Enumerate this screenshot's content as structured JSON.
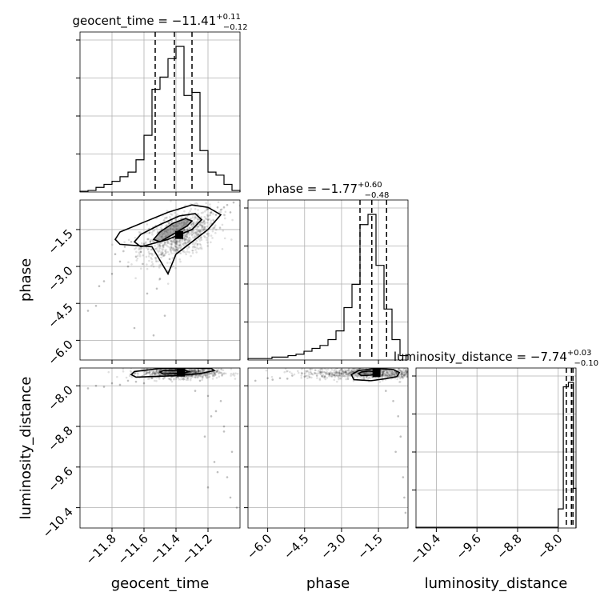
{
  "chart_data": {
    "type": "corner",
    "parameters": [
      "geocent_time",
      "phase",
      "luminosity_distance"
    ],
    "axis_labels": {
      "geocent_time": "geocent_time",
      "phase": "phase",
      "luminosity_distance": "luminosity_distance"
    },
    "ranges": {
      "geocent_time": [
        -12.0,
        -11.0
      ],
      "phase": [
        -6.8,
        -0.3
      ],
      "luminosity_distance": [
        -10.8,
        -7.65
      ]
    },
    "ticks": {
      "geocent_time": [
        -11.8,
        -11.6,
        -11.4,
        -11.2
      ],
      "phase": [
        -6.0,
        -4.5,
        -3.0,
        -1.5
      ],
      "luminosity_distance": [
        -10.4,
        -9.6,
        -8.8,
        -8.0
      ]
    },
    "tick_labels": {
      "geocent_time": [
        "−11.8",
        "−11.6",
        "−11.4",
        "−11.2"
      ],
      "phase": [
        "−6.0",
        "−4.5",
        "−3.0",
        "−1.5"
      ],
      "luminosity_distance": [
        "−10.4",
        "−9.6",
        "−8.8",
        "−8.0"
      ]
    },
    "titles": {
      "geocent_time": {
        "name": "geocent_time",
        "median": "−11.41",
        "plus": "+0.11",
        "minus": "−0.12"
      },
      "phase": {
        "name": "phase",
        "median": "−1.77",
        "plus": "+0.60",
        "minus": "−0.48"
      },
      "luminosity_distance": {
        "name": "luminosity_distance",
        "median": "−7.74",
        "plus": "+0.03",
        "minus": "−0.10"
      }
    },
    "quantiles": {
      "geocent_time": [
        -11.53,
        -11.41,
        -11.3
      ],
      "phase": [
        -2.25,
        -1.77,
        -1.17
      ],
      "luminosity_distance": [
        -7.84,
        -7.74,
        -7.71
      ]
    },
    "histograms": {
      "geocent_time": {
        "edges": [
          -12.0,
          -11.95,
          -11.9,
          -11.85,
          -11.8,
          -11.75,
          -11.7,
          -11.65,
          -11.6,
          -11.55,
          -11.5,
          -11.45,
          -11.4,
          -11.35,
          -11.3,
          -11.25,
          -11.2,
          -11.15,
          -11.1,
          -11.05,
          -11.0
        ],
        "counts": [
          0.005,
          0.01,
          0.03,
          0.05,
          0.07,
          0.1,
          0.13,
          0.21,
          0.37,
          0.67,
          0.75,
          0.87,
          0.95,
          0.63,
          0.65,
          0.27,
          0.13,
          0.11,
          0.05,
          0.01
        ]
      },
      "phase": {
        "edges": [
          -6.8,
          -6.475,
          -6.15,
          -5.825,
          -5.5,
          -5.175,
          -4.85,
          -4.525,
          -4.2,
          -3.875,
          -3.55,
          -3.225,
          -2.9,
          -2.575,
          -2.25,
          -1.925,
          -1.6,
          -1.275,
          -0.95,
          -0.625,
          -0.3
        ],
        "counts": [
          0.01,
          0.01,
          0.01,
          0.02,
          0.02,
          0.03,
          0.04,
          0.06,
          0.08,
          0.1,
          0.14,
          0.2,
          0.36,
          0.52,
          0.93,
          1.0,
          0.65,
          0.35,
          0.14,
          0.03
        ]
      },
      "luminosity_distance": {
        "edges": [
          -10.8,
          -10.7,
          -10.6,
          -10.5,
          -10.4,
          -10.3,
          -10.2,
          -10.1,
          -10.0,
          -9.9,
          -9.8,
          -9.7,
          -9.6,
          -9.5,
          -9.4,
          -9.3,
          -9.2,
          -9.1,
          -9.0,
          -8.9,
          -8.8,
          -8.7,
          -8.6,
          -8.5,
          -8.4,
          -8.3,
          -8.2,
          -8.1,
          -8.0,
          -7.9,
          -7.8,
          -7.7,
          -7.65
        ],
        "counts": [
          0.005,
          0.005,
          0.005,
          0.005,
          0.005,
          0.005,
          0.005,
          0.005,
          0.005,
          0.005,
          0.005,
          0.005,
          0.005,
          0.005,
          0.005,
          0.005,
          0.005,
          0.005,
          0.005,
          0.005,
          0.005,
          0.005,
          0.005,
          0.005,
          0.005,
          0.005,
          0.005,
          0.005,
          0.13,
          0.96,
          0.99,
          0.27
        ]
      }
    },
    "scatter_samples": {
      "phase_vs_geocent_time": {
        "x": [
          -11.48,
          -11.42,
          -11.38,
          -11.35,
          -11.55,
          -11.6,
          -11.68,
          -11.72,
          -11.3,
          -11.25,
          -11.2,
          -11.15,
          -11.1,
          -11.45,
          -11.5,
          -11.65,
          -11.75,
          -11.8,
          -11.9,
          -11.58,
          -11.52,
          -11.47,
          -11.36,
          -11.33,
          -11.28,
          -11.22,
          -11.18,
          -11.12,
          -11.08,
          -11.62,
          -11.7,
          -11.85,
          -11.95,
          -11.44,
          -11.4,
          -11.54,
          -11.66,
          -11.26,
          -11.16,
          -11.06,
          -11.56,
          -11.49,
          -11.43,
          -11.38,
          -11.78,
          -11.88,
          -11.32,
          -11.24,
          -11.14,
          -11.04
        ],
        "y": [
          -1.9,
          -1.7,
          -1.6,
          -1.5,
          -2.3,
          -2.1,
          -2.0,
          -2.2,
          -1.5,
          -1.3,
          -1.1,
          -0.9,
          -0.6,
          -3.2,
          -3.5,
          -2.6,
          -2.8,
          -3.3,
          -4.6,
          -4.1,
          -3.9,
          -5.0,
          -1.9,
          -1.2,
          -1.0,
          -1.4,
          -0.8,
          -0.7,
          -0.5,
          -2.4,
          -3.0,
          -3.6,
          -4.8,
          -2.7,
          -2.2,
          -5.8,
          -5.5,
          -1.7,
          -1.2,
          -0.8,
          -2.0,
          -1.8,
          -2.1,
          -1.6,
          -2.5,
          -3.8,
          -0.9,
          -1.1,
          -0.6,
          -0.4
        ]
      },
      "luminosity_distance_vs_geocent_time": {
        "x": [
          -11.6,
          -11.5,
          -11.4,
          -11.3,
          -11.25,
          -11.7,
          -11.8,
          -11.9,
          -11.2,
          -11.15,
          -11.1,
          -11.05,
          -11.22,
          -11.18,
          -11.12,
          -11.45,
          -11.35,
          -11.55,
          -11.65,
          -11.75,
          -11.85,
          -11.95,
          -11.28,
          -11.08,
          -11.02,
          -11.16,
          -11.2,
          -11.1,
          -11.14,
          -11.06
        ],
        "y": [
          -7.95,
          -7.8,
          -7.75,
          -7.8,
          -7.9,
          -7.9,
          -7.95,
          -8.0,
          -8.2,
          -8.5,
          -8.8,
          -9.3,
          -9.0,
          -8.6,
          -8.3,
          -7.78,
          -7.72,
          -7.85,
          -7.92,
          -7.98,
          -8.02,
          -8.05,
          -8.1,
          -9.8,
          -10.4,
          -9.5,
          -10.0,
          -8.9,
          -9.7,
          -10.2
        ]
      },
      "luminosity_distance_vs_phase": {
        "x": [
          -6.5,
          -6.0,
          -5.5,
          -5.0,
          -4.5,
          -4.0,
          -3.5,
          -3.0,
          -2.5,
          -2.0,
          -1.5,
          -1.0,
          -0.6,
          -0.4,
          -1.8,
          -2.2,
          -2.8,
          -3.3,
          -3.8,
          -4.3,
          -5.2,
          -5.8,
          -0.7,
          -0.5,
          -0.45,
          -0.9,
          -1.2,
          -0.8
        ],
        "y": [
          -7.9,
          -7.85,
          -7.85,
          -7.8,
          -7.82,
          -7.8,
          -7.78,
          -7.76,
          -7.75,
          -7.74,
          -7.76,
          -7.8,
          -9.0,
          -10.5,
          -7.8,
          -7.78,
          -7.77,
          -7.79,
          -7.81,
          -7.83,
          -7.86,
          -7.88,
          -8.6,
          -9.8,
          -10.2,
          -8.3,
          -8.1,
          -9.3
        ]
      }
    },
    "contours": {
      "phase_vs_geocent_time": [
        {
          "level": "inner",
          "x": [
            -11.5,
            -11.42,
            -11.33,
            -11.3,
            -11.34,
            -11.42,
            -11.5,
            -11.54,
            -11.5
          ],
          "y": [
            -2.0,
            -1.7,
            -1.35,
            -1.15,
            -1.05,
            -1.25,
            -1.6,
            -1.9,
            -2.0
          ]
        },
        {
          "level": "middle",
          "x": [
            -11.62,
            -11.45,
            -11.3,
            -11.24,
            -11.28,
            -11.38,
            -11.5,
            -11.62,
            -11.66,
            -11.62
          ],
          "y": [
            -2.2,
            -1.9,
            -1.5,
            -1.1,
            -0.85,
            -0.95,
            -1.3,
            -1.7,
            -2.0,
            -2.2
          ]
        },
        {
          "level": "outer",
          "x": [
            -11.75,
            -11.55,
            -11.45,
            -11.4,
            -11.3,
            -11.2,
            -11.12,
            -11.2,
            -11.3,
            -11.45,
            -11.6,
            -11.75,
            -11.78,
            -11.75
          ],
          "y": [
            -2.1,
            -2.2,
            -3.3,
            -2.5,
            -2.0,
            -1.5,
            -0.9,
            -0.6,
            -0.5,
            -0.8,
            -1.2,
            -1.6,
            -1.9,
            -2.1
          ]
        }
      ],
      "luminosity_distance_vs_geocent_time": [
        {
          "level": "inner",
          "x": [
            -11.48,
            -11.35,
            -11.32,
            -11.35,
            -11.48,
            -11.5,
            -11.48
          ],
          "y": [
            -7.77,
            -7.75,
            -7.72,
            -7.69,
            -7.7,
            -7.73,
            -7.77
          ]
        },
        {
          "level": "outer",
          "x": [
            -11.65,
            -11.4,
            -11.25,
            -11.16,
            -11.18,
            -11.3,
            -11.5,
            -11.66,
            -11.68,
            -11.65
          ],
          "y": [
            -7.83,
            -7.8,
            -7.76,
            -7.7,
            -7.66,
            -7.65,
            -7.66,
            -7.72,
            -7.78,
            -7.83
          ]
        }
      ],
      "luminosity_distance_vs_phase": [
        {
          "level": "inner",
          "x": [
            -2.2,
            -1.8,
            -1.55,
            -1.6,
            -1.9,
            -2.2,
            -2.3,
            -2.2
          ],
          "y": [
            -7.8,
            -7.79,
            -7.76,
            -7.72,
            -7.71,
            -7.73,
            -7.76,
            -7.8
          ]
        },
        {
          "level": "outer",
          "x": [
            -2.5,
            -1.8,
            -1.2,
            -0.75,
            -0.65,
            -0.9,
            -1.6,
            -2.3,
            -2.6,
            -2.5
          ],
          "y": [
            -7.88,
            -7.9,
            -7.86,
            -7.82,
            -7.74,
            -7.68,
            -7.66,
            -7.7,
            -7.78,
            -7.88
          ]
        }
      ]
    },
    "density_peaks": {
      "phase_vs_geocent_time": {
        "x": -11.38,
        "y": -1.72
      },
      "luminosity_distance_vs_geocent_time": {
        "x": -11.37,
        "y": -7.74
      },
      "luminosity_distance_vs_phase": {
        "x": -1.58,
        "y": -7.75
      }
    }
  }
}
